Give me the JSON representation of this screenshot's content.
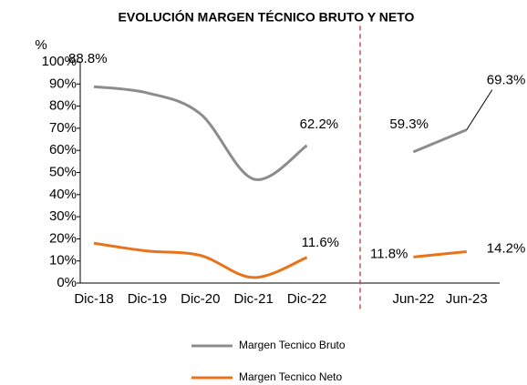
{
  "chart_data": {
    "type": "line",
    "title": "EVOLUCIÓN MARGEN TÉCNICO BRUTO Y NETO",
    "y_label": "%",
    "categories": [
      "Dic-18",
      "Dic-19",
      "Dic-20",
      "Dic-21",
      "Dic-22",
      null,
      "Jun-22",
      "Jun-23"
    ],
    "series": [
      {
        "name": "Margen Tecnico Bruto",
        "color": "#8c8c8c",
        "values": [
          88.8,
          86,
          76.5,
          47,
          62.2,
          null,
          59.3,
          69.3
        ],
        "value_labels": [
          "88.8%",
          null,
          null,
          null,
          "62.2%",
          null,
          "59.3%",
          "69.3%"
        ]
      },
      {
        "name": "Margen Tecnico Neto",
        "color": "#e8731a",
        "values": [
          18,
          14.5,
          12.5,
          2.5,
          11.6,
          null,
          11.8,
          14.2
        ],
        "value_labels": [
          null,
          null,
          null,
          null,
          "11.6%",
          null,
          "11.8%",
          "14.2%"
        ]
      }
    ],
    "ylim": [
      0,
      100
    ],
    "yticks": [
      {
        "value": 0,
        "label": "0%"
      },
      {
        "value": 10,
        "label": "10%"
      },
      {
        "value": 20,
        "label": "20%"
      },
      {
        "value": 30,
        "label": "30%"
      },
      {
        "value": 40,
        "label": "40%"
      },
      {
        "value": 50,
        "label": "50%"
      },
      {
        "value": 60,
        "label": "60%"
      },
      {
        "value": 70,
        "label": "70%"
      },
      {
        "value": 80,
        "label": "80%"
      },
      {
        "value": 90,
        "label": "90%"
      },
      {
        "value": 100,
        "label": "100%"
      }
    ],
    "legend": "bottom"
  }
}
